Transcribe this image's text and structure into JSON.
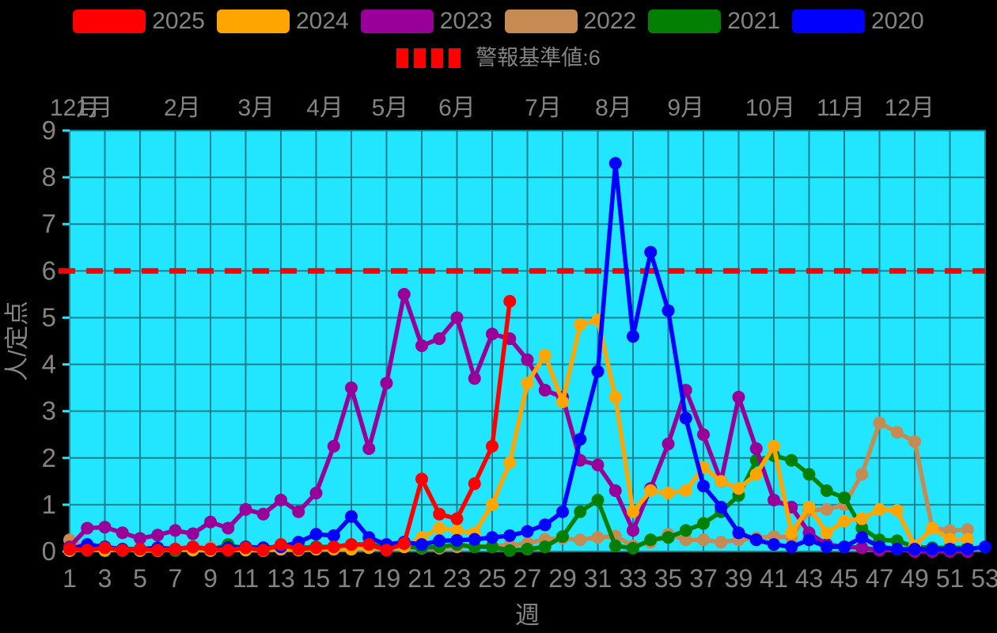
{
  "page": {
    "background": "#000000",
    "text_color": "#848484"
  },
  "legend": {
    "items": [
      {
        "label": "2025",
        "color": "#ff0000"
      },
      {
        "label": "2024",
        "color": "#ffa500"
      },
      {
        "label": "2023",
        "color": "#990099"
      },
      {
        "label": "2022",
        "color": "#c68a53"
      },
      {
        "label": "2021",
        "color": "#038003"
      },
      {
        "label": "2020",
        "color": "#0000ff"
      }
    ],
    "threshold": {
      "label": "警報基準値:6",
      "color": "#ff0000",
      "style": "dashed"
    }
  },
  "chart_data": {
    "type": "line",
    "title": "",
    "xlabel": "週",
    "ylabel": "人/定点",
    "xlim": [
      1,
      53
    ],
    "ylim": [
      0,
      9
    ],
    "x_ticks": [
      1,
      3,
      5,
      7,
      9,
      11,
      13,
      15,
      17,
      19,
      21,
      23,
      25,
      27,
      29,
      31,
      33,
      35,
      37,
      39,
      41,
      43,
      45,
      47,
      49,
      51,
      53
    ],
    "y_ticks": [
      0,
      1,
      2,
      3,
      4,
      5,
      6,
      7,
      8,
      9
    ],
    "grid": true,
    "plot_background": "#22e5ff",
    "grid_color": "#1a7f8c",
    "threshold_value": 6,
    "threshold_color": "#ff0000",
    "month_axis": [
      {
        "label": "12月",
        "week": 1.3
      },
      {
        "label": "1月",
        "week": 2.4
      },
      {
        "label": "2月",
        "week": 7.4
      },
      {
        "label": "3月",
        "week": 11.6
      },
      {
        "label": "4月",
        "week": 15.5
      },
      {
        "label": "5月",
        "week": 19.2
      },
      {
        "label": "6月",
        "week": 23.0
      },
      {
        "label": "7月",
        "week": 27.9
      },
      {
        "label": "8月",
        "week": 31.9
      },
      {
        "label": "9月",
        "week": 36.0
      },
      {
        "label": "10月",
        "week": 40.8
      },
      {
        "label": "11月",
        "week": 44.8
      },
      {
        "label": "12月",
        "week": 48.7
      }
    ],
    "draw_order": [
      "2022",
      "2021",
      "2023",
      "2024",
      "2020",
      "2025"
    ],
    "series": [
      {
        "name": "2025",
        "color": "#ff0000",
        "values": [
          0.05,
          0.03,
          0.08,
          0.03,
          0.05,
          0.03,
          0.05,
          0.1,
          0.05,
          0.03,
          0.08,
          0.03,
          0.15,
          0.05,
          0.08,
          0.1,
          0.15,
          0.15,
          0.03,
          0.17,
          1.55,
          0.8,
          0.7,
          1.45,
          2.25,
          5.35,
          null,
          null,
          null,
          null,
          null,
          null,
          null,
          null,
          null,
          null,
          null,
          null,
          null,
          null,
          null,
          null,
          null,
          null,
          null,
          null,
          null,
          null,
          null,
          null,
          null,
          null,
          null
        ]
      },
      {
        "name": "2024",
        "color": "#ffa500",
        "values": [
          0.02,
          0.05,
          0.02,
          0.05,
          0.02,
          0.02,
          0.05,
          0.03,
          0.02,
          0.05,
          0.03,
          0.02,
          0.05,
          0.03,
          0.05,
          0.05,
          0.05,
          0.08,
          0.05,
          0.1,
          0.3,
          0.5,
          0.45,
          0.4,
          1.0,
          1.9,
          3.6,
          4.2,
          3.2,
          4.85,
          4.95,
          3.3,
          0.85,
          1.3,
          1.25,
          1.3,
          1.8,
          1.5,
          1.35,
          1.65,
          2.25,
          0.4,
          0.95,
          0.4,
          0.65,
          0.7,
          0.9,
          0.88,
          0.12,
          0.5,
          0.26,
          0.26,
          null
        ]
      },
      {
        "name": "2023",
        "color": "#990099",
        "values": [
          0.1,
          0.5,
          0.52,
          0.4,
          0.28,
          0.35,
          0.45,
          0.38,
          0.63,
          0.5,
          0.9,
          0.8,
          1.1,
          0.85,
          1.25,
          2.25,
          3.5,
          2.2,
          3.6,
          5.5,
          4.4,
          4.55,
          5.0,
          3.7,
          4.65,
          4.55,
          4.1,
          3.45,
          3.3,
          1.95,
          1.85,
          1.3,
          0.45,
          1.35,
          2.3,
          3.45,
          2.5,
          1.5,
          3.3,
          2.2,
          1.1,
          0.95,
          0.4,
          0.15,
          0.1,
          0.08,
          0.03,
          0.05,
          0.0,
          0.0,
          0.0,
          0.0,
          null
        ]
      },
      {
        "name": "2022",
        "color": "#c68a53",
        "values": [
          0.25,
          0.05,
          0.08,
          0.04,
          0.05,
          0.08,
          0.05,
          0.04,
          0.08,
          0.05,
          0.04,
          0.08,
          0.05,
          0.04,
          0.08,
          0.1,
          0.08,
          0.1,
          0.08,
          0.1,
          0.07,
          0.07,
          0.1,
          0.1,
          0.12,
          0.13,
          0.18,
          0.26,
          0.28,
          0.25,
          0.3,
          0.33,
          0.12,
          0.2,
          0.37,
          0.25,
          0.25,
          0.2,
          0.25,
          0.29,
          0.32,
          0.3,
          0.88,
          0.9,
          1.0,
          1.65,
          2.75,
          2.55,
          2.35,
          0.5,
          0.45,
          0.47,
          null
        ]
      },
      {
        "name": "2021",
        "color": "#038003",
        "values": [
          0.05,
          0.03,
          0.05,
          0.02,
          0.03,
          0.05,
          0.02,
          0.05,
          0.03,
          0.15,
          0.05,
          0.08,
          0.05,
          0.08,
          0.1,
          0.1,
          0.1,
          0.15,
          0.1,
          0.1,
          0.08,
          0.1,
          0.15,
          0.1,
          0.1,
          0.02,
          0.05,
          0.1,
          0.32,
          0.85,
          1.1,
          0.12,
          0.07,
          0.25,
          0.3,
          0.45,
          0.6,
          0.85,
          1.2,
          1.95,
          2.05,
          1.95,
          1.65,
          1.3,
          1.15,
          0.5,
          0.25,
          0.23,
          0.1,
          0.08,
          0.08,
          0.08,
          null
        ]
      },
      {
        "name": "2020",
        "color": "#0000ff",
        "values": [
          0.05,
          0.15,
          0.1,
          0.05,
          0.05,
          0.08,
          0.05,
          0.1,
          0.05,
          0.08,
          0.1,
          0.08,
          0.1,
          0.2,
          0.37,
          0.34,
          0.75,
          0.3,
          0.15,
          0.2,
          0.15,
          0.23,
          0.24,
          0.26,
          0.3,
          0.34,
          0.43,
          0.57,
          0.85,
          2.4,
          3.85,
          8.3,
          4.6,
          6.4,
          5.15,
          2.85,
          1.4,
          0.95,
          0.4,
          0.25,
          0.15,
          0.1,
          0.25,
          0.1,
          0.1,
          0.3,
          0.1,
          0.05,
          0.05,
          0.05,
          0.05,
          0.05,
          0.1
        ]
      }
    ]
  }
}
